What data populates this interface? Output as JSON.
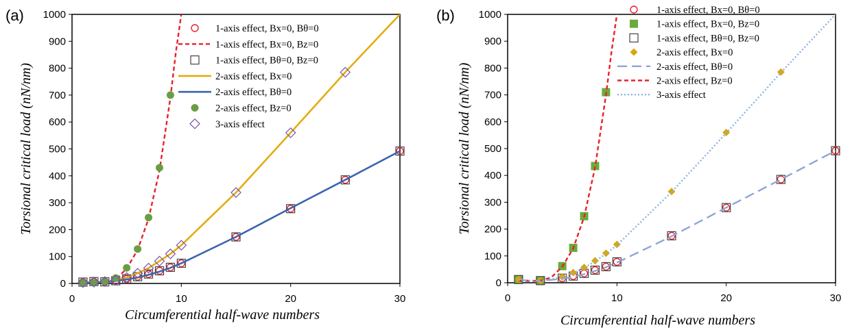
{
  "chart_data": [
    {
      "type": "line",
      "panel_label": "(a)",
      "xlabel": "Circumferential half-wave numbers",
      "ylabel": "Torsional critical load (nN/nm)",
      "xlim": [
        0,
        30
      ],
      "ylim": [
        0,
        1000
      ],
      "xticks": [
        0,
        10,
        20,
        30
      ],
      "yticks": [
        0,
        100,
        200,
        300,
        400,
        500,
        600,
        700,
        800,
        900,
        1000
      ],
      "grid": false,
      "legend_position": "top-right",
      "series": [
        {
          "name": "1-axis effect, Bx=0, Bθ=0",
          "marker": "circle-open",
          "color": "#e8202a",
          "x": [
            1,
            2,
            3,
            4,
            5,
            6,
            7,
            8,
            9,
            10,
            15,
            20,
            25,
            30
          ],
          "y": [
            5,
            7,
            6,
            10,
            17,
            25,
            35,
            47,
            60,
            75,
            173,
            278,
            385,
            492
          ]
        },
        {
          "name": "1-axis effect, Bx=0, Bz=0",
          "line": "dashed",
          "color": "#e8202a",
          "x": [
            1,
            2,
            3,
            4,
            5,
            6,
            7,
            8,
            9,
            9.5,
            10
          ],
          "y": [
            2,
            3,
            5,
            15,
            55,
            125,
            240,
            420,
            690,
            860,
            1000
          ]
        },
        {
          "name": "1-axis effect, Bθ=0, Bz=0",
          "marker": "square-open",
          "color": "#444444",
          "x": [
            1,
            2,
            3,
            4,
            5,
            6,
            7,
            8,
            9,
            10,
            15,
            20,
            25,
            30
          ],
          "y": [
            5,
            7,
            6,
            10,
            17,
            25,
            35,
            47,
            60,
            75,
            173,
            278,
            385,
            492
          ]
        },
        {
          "name": "2-axis effect, Bx=0",
          "line": "solid",
          "color": "#e3ac0d",
          "x": [
            1,
            2,
            3,
            4,
            5,
            6,
            7,
            8,
            9,
            10,
            15,
            20,
            25,
            30
          ],
          "y": [
            3,
            4,
            6,
            12,
            22,
            38,
            57,
            83,
            110,
            142,
            338,
            560,
            785,
            1000
          ]
        },
        {
          "name": "2-axis effect, Bθ=0",
          "line": "solid",
          "color": "#3b64ad",
          "x": [
            1,
            2,
            3,
            4,
            5,
            6,
            7,
            8,
            9,
            10,
            15,
            20,
            25,
            30
          ],
          "y": [
            3,
            4,
            5,
            9,
            15,
            22,
            32,
            44,
            58,
            75,
            173,
            280,
            385,
            492
          ]
        },
        {
          "name": "2-axis effect, Bz=0",
          "marker": "circle-filled",
          "color": "#6a9e44",
          "x": [
            1,
            2,
            3,
            4,
            5,
            6,
            7,
            8,
            9
          ],
          "y": [
            3,
            3,
            5,
            20,
            58,
            128,
            245,
            430,
            700
          ]
        },
        {
          "name": "3-axis effect",
          "marker": "diamond-open",
          "color": "#7a52a8",
          "x": [
            1,
            2,
            3,
            4,
            5,
            6,
            7,
            8,
            9,
            10,
            15,
            20,
            25
          ],
          "y": [
            3,
            5,
            7,
            12,
            22,
            38,
            57,
            83,
            110,
            142,
            338,
            560,
            785
          ]
        }
      ]
    },
    {
      "type": "line",
      "panel_label": "(b)",
      "xlabel": "Circumferential half-wave numbers",
      "ylabel": "Torsional critical load (nN/nm)",
      "xlim": [
        0,
        30
      ],
      "ylim": [
        0,
        1000
      ],
      "xticks": [
        0,
        10,
        20,
        30
      ],
      "yticks": [
        0,
        100,
        200,
        300,
        400,
        500,
        600,
        700,
        800,
        900,
        1000
      ],
      "grid": false,
      "legend_position": "top-right",
      "series": [
        {
          "name": "1-axis effect, Bx=0, Bθ=0",
          "marker": "circle-open",
          "color": "#e8202a",
          "x": [
            1,
            3,
            5,
            6,
            7,
            8,
            9,
            10,
            15,
            20,
            25,
            30
          ],
          "y": [
            12,
            8,
            17,
            25,
            35,
            47,
            60,
            78,
            175,
            280,
            385,
            492
          ]
        },
        {
          "name": "1-axis effect, Bx=0, Bz=0",
          "marker": "square-filled",
          "color": "#6aab3e",
          "x": [
            1,
            3,
            5,
            6,
            7,
            8,
            9
          ],
          "y": [
            12,
            8,
            62,
            130,
            248,
            435,
            710
          ]
        },
        {
          "name": "1-axis effect, Bθ=0, Bz=0",
          "marker": "square-open",
          "color": "#444444",
          "x": [
            1,
            3,
            5,
            6,
            7,
            8,
            9,
            10,
            15,
            20,
            25,
            30
          ],
          "y": [
            12,
            8,
            17,
            25,
            35,
            47,
            60,
            78,
            175,
            280,
            385,
            492
          ]
        },
        {
          "name": "2-axis effect, Bx=0",
          "marker": "diamond-filled",
          "color": "#d9a60c",
          "x": [
            1,
            3,
            5,
            6,
            7,
            8,
            9,
            10,
            15,
            20,
            25
          ],
          "y": [
            12,
            8,
            22,
            38,
            57,
            82,
            110,
            143,
            340,
            560,
            785
          ]
        },
        {
          "name": "2-axis effect, Bθ=0",
          "line": "long-dashed",
          "color": "#8fa5d4",
          "x": [
            1,
            3,
            5,
            6,
            7,
            8,
            9,
            10,
            15,
            20,
            25,
            30
          ],
          "y": [
            10,
            7,
            15,
            22,
            32,
            44,
            58,
            75,
            173,
            280,
            385,
            492
          ]
        },
        {
          "name": "2-axis effect, Bz=0",
          "line": "dashed",
          "color": "#e8202a",
          "x": [
            1,
            2,
            3,
            4,
            5,
            6,
            7,
            8,
            9,
            9.5,
            10
          ],
          "y": [
            8,
            6,
            8,
            20,
            60,
            128,
            245,
            430,
            700,
            860,
            1000
          ]
        },
        {
          "name": "3-axis effect",
          "line": "dotted",
          "color": "#8ab2dc",
          "x": [
            1,
            3,
            5,
            6,
            7,
            8,
            9,
            10,
            15,
            20,
            25,
            30
          ],
          "y": [
            10,
            7,
            20,
            36,
            55,
            80,
            108,
            140,
            338,
            558,
            783,
            1000
          ]
        }
      ]
    }
  ]
}
